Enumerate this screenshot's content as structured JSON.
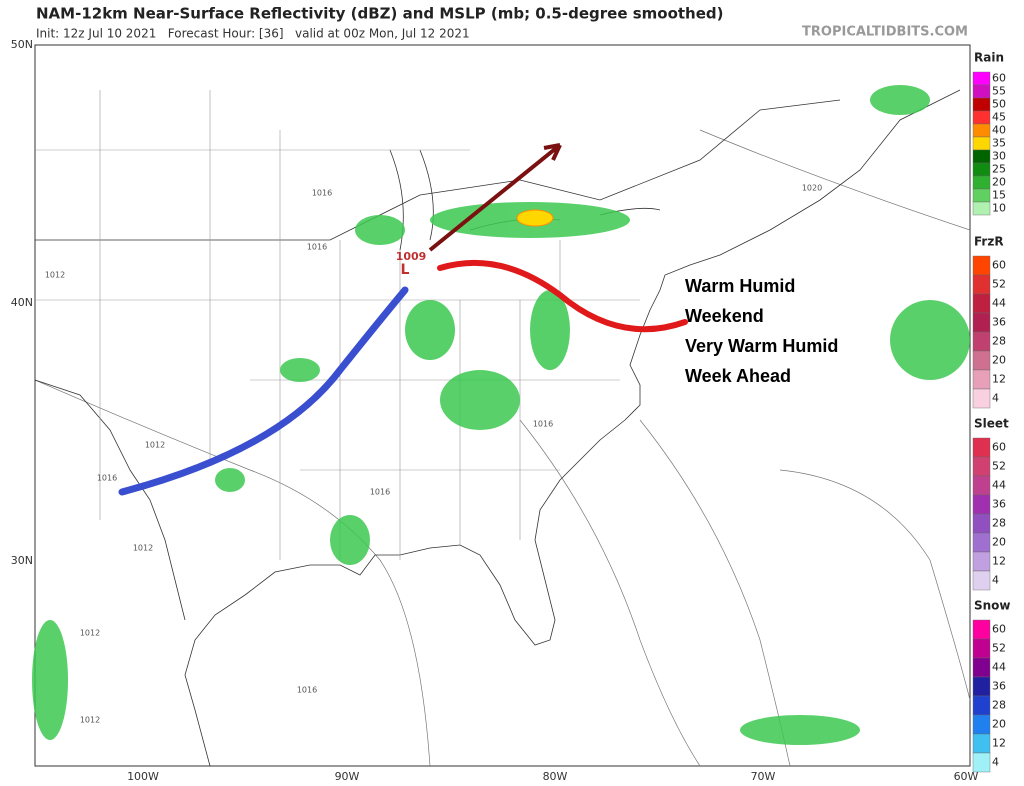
{
  "header": {
    "title": "NAM-12km Near-Surface Reflectivity (dBZ) and MSLP (mb; 0.5-degree smoothed)",
    "subtitle": "Init: 12z Jul 10 2021   Forecast Hour: [36]   valid at 00z Mon, Jul 12 2021",
    "source": "TROPICALTIDBITS.COM"
  },
  "map": {
    "lat_labels": [
      "50N",
      "40N",
      "30N"
    ],
    "lon_labels": [
      "100W",
      "90W",
      "80W",
      "70W",
      "60W"
    ],
    "isobar_labels": [
      "1016",
      "1016",
      "1012",
      "1012",
      "1016",
      "1012",
      "1016",
      "1016",
      "1012",
      "1016",
      "1012",
      "1020"
    ],
    "low": {
      "symbol": "L",
      "pressure": "1009"
    },
    "annotation": [
      "Warm Humid",
      "Weekend",
      "Very Warm Humid",
      "Week Ahead"
    ]
  },
  "legends": [
    {
      "title": "Rain",
      "labels": [
        60,
        55,
        50,
        45,
        40,
        35,
        30,
        25,
        20,
        15,
        10
      ],
      "colors": [
        "#ff00ff",
        "#d010c0",
        "#c00000",
        "#ff3030",
        "#ff8c00",
        "#ffd700",
        "#006400",
        "#108c10",
        "#30b030",
        "#60d060",
        "#b0f0b0"
      ]
    },
    {
      "title": "FrzR",
      "labels": [
        60,
        52,
        44,
        36,
        28,
        20,
        12,
        4
      ],
      "colors": [
        "#ff4500",
        "#e03030",
        "#c02040",
        "#b02050",
        "#c04070",
        "#d07090",
        "#e8a0b8",
        "#f8d0e0"
      ]
    },
    {
      "title": "Sleet",
      "labels": [
        60,
        52,
        44,
        36,
        28,
        20,
        12,
        4
      ],
      "colors": [
        "#e03050",
        "#d04070",
        "#c04090",
        "#a030b0",
        "#9050c0",
        "#a070d0",
        "#c0a0e0",
        "#e0d0f0"
      ]
    },
    {
      "title": "Snow",
      "labels": [
        60,
        52,
        44,
        36,
        28,
        20,
        12,
        4
      ],
      "colors": [
        "#ff00a0",
        "#c00090",
        "#800090",
        "#2020a0",
        "#2040d0",
        "#2080f0",
        "#40c0f0",
        "#a0f0f8"
      ]
    }
  ]
}
